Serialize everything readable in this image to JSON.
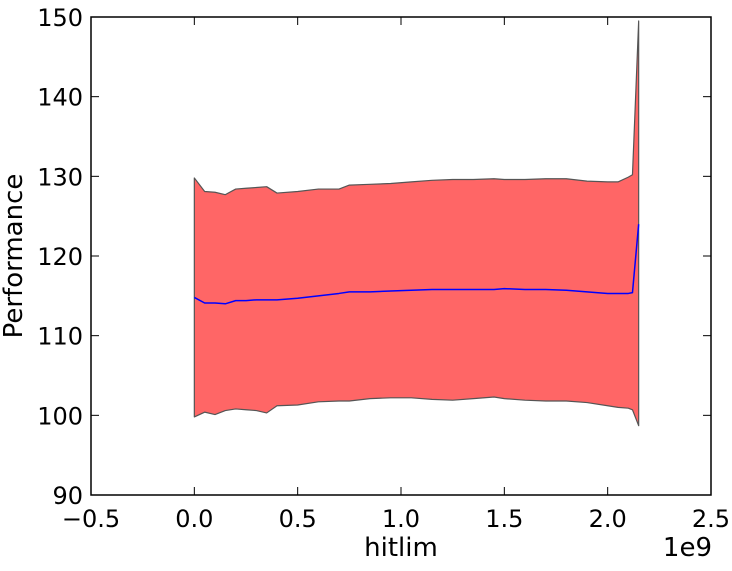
{
  "chart_data": {
    "type": "area",
    "title": "",
    "xlabel": "hitlim",
    "ylabel": "Performance",
    "x_offset_text": "1e9",
    "xlim": [
      -0.5,
      2.5
    ],
    "ylim": [
      90,
      150
    ],
    "xticks": [
      -0.5,
      0.0,
      0.5,
      1.0,
      1.5,
      2.0,
      2.5
    ],
    "xtick_labels": [
      "−0.5",
      "0.0",
      "0.5",
      "1.0",
      "1.5",
      "2.0",
      "2.5"
    ],
    "yticks": [
      90,
      100,
      110,
      120,
      130,
      140,
      150
    ],
    "ytick_labels": [
      "90",
      "100",
      "110",
      "120",
      "130",
      "140",
      "150"
    ],
    "grid": false,
    "legend": "none",
    "colors": {
      "band_fill": "#ff6666",
      "band_edge": "#555555",
      "mean_line": "#0000ff"
    },
    "series": [
      {
        "x": [
          0.0,
          0.05,
          0.1,
          0.15,
          0.2,
          0.25,
          0.3,
          0.35,
          0.4,
          0.5,
          0.6,
          0.7,
          0.75,
          0.85,
          0.95,
          1.05,
          1.15,
          1.25,
          1.35,
          1.45,
          1.5,
          1.6,
          1.7,
          1.8,
          1.9,
          2.0,
          2.05,
          2.1,
          2.12,
          2.15
        ],
        "mean": [
          114.8,
          114.1,
          114.1,
          114.0,
          114.4,
          114.4,
          114.5,
          114.5,
          114.5,
          114.7,
          115.0,
          115.3,
          115.5,
          115.5,
          115.6,
          115.7,
          115.8,
          115.8,
          115.8,
          115.8,
          115.9,
          115.8,
          115.8,
          115.7,
          115.5,
          115.3,
          115.3,
          115.3,
          115.4,
          124.0
        ],
        "upper": [
          129.8,
          128.1,
          128.0,
          127.7,
          128.4,
          128.5,
          128.6,
          128.7,
          127.9,
          128.1,
          128.4,
          128.4,
          128.9,
          129.0,
          129.1,
          129.3,
          129.5,
          129.6,
          129.6,
          129.7,
          129.6,
          129.6,
          129.7,
          129.7,
          129.4,
          129.3,
          129.3,
          129.9,
          130.2,
          149.5
        ],
        "lower": [
          99.8,
          100.4,
          100.1,
          100.6,
          100.8,
          100.7,
          100.6,
          100.3,
          101.2,
          101.3,
          101.7,
          101.8,
          101.8,
          102.1,
          102.2,
          102.2,
          102.0,
          101.9,
          102.1,
          102.3,
          102.1,
          101.9,
          101.8,
          101.8,
          101.6,
          101.2,
          101.0,
          100.9,
          100.7,
          98.7
        ]
      }
    ]
  }
}
